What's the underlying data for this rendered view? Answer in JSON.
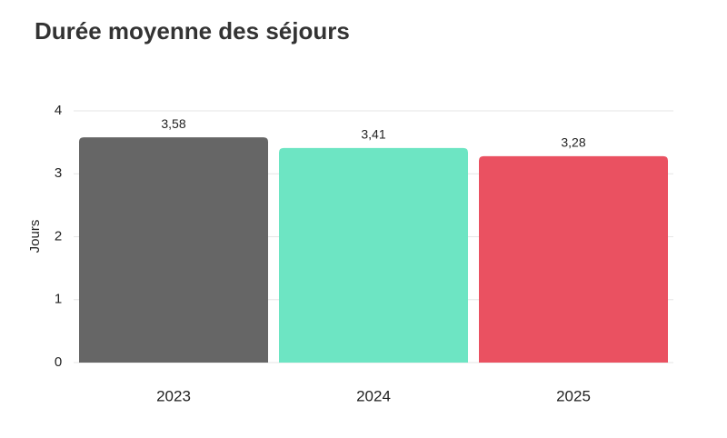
{
  "chart_data": {
    "type": "bar",
    "title": "Durée moyenne des séjours",
    "y_label": "Jours",
    "categories": [
      "2023",
      "2024",
      "2025"
    ],
    "values": [
      3.58,
      3.41,
      3.28
    ],
    "value_labels": [
      "3,58",
      "3,41",
      "3,28"
    ],
    "colors": [
      "#666666",
      "#6de5c3",
      "#ea5161"
    ],
    "ylim": [
      0,
      4
    ],
    "yticks": [
      0,
      1,
      2,
      3,
      4
    ],
    "grid": true
  }
}
